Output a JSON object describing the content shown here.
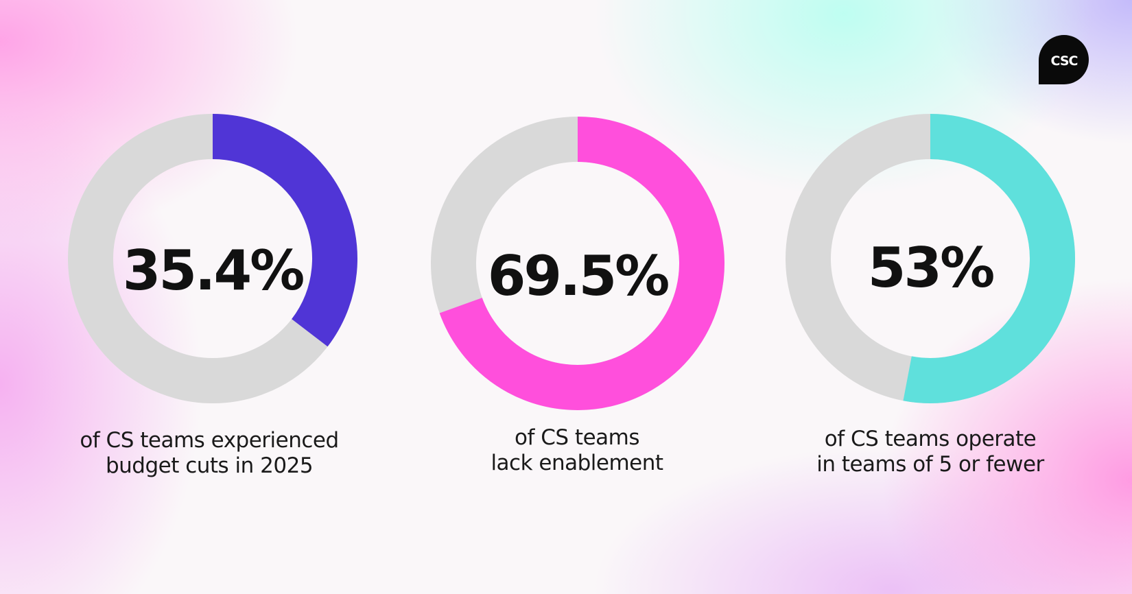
{
  "logo": {
    "text": "CSC"
  },
  "colors": {
    "track": "#d9d9d9",
    "purple": "#5035d6",
    "pink": "#ff4fdc",
    "teal": "#5fe0dc",
    "text": "#111111"
  },
  "chart_data": [
    {
      "type": "pie",
      "value": 35.4,
      "label": "35.4%",
      "caption_lines": [
        "of CS teams experienced",
        "budget cuts in 2025"
      ],
      "color": "#5035d6"
    },
    {
      "type": "pie",
      "value": 69.5,
      "label": "69.5%",
      "caption_lines": [
        "of CS teams",
        "lack enablement"
      ],
      "color": "#ff4fdc"
    },
    {
      "type": "pie",
      "value": 53,
      "label": "53%",
      "caption_lines": [
        "of CS teams operate",
        "in teams of 5 or fewer"
      ],
      "color": "#5fe0dc"
    }
  ]
}
